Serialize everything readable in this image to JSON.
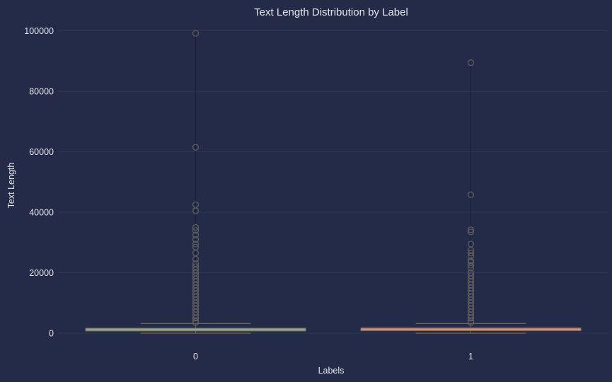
{
  "chart_data": {
    "type": "box",
    "title": "Text Length Distribution by Label",
    "xlabel": "Labels",
    "ylabel": "Text Length",
    "categories": [
      "0",
      "1"
    ],
    "ylim": [
      -3500,
      102500
    ],
    "yticks": [
      0,
      20000,
      40000,
      60000,
      80000,
      100000
    ],
    "grid": true,
    "legend": "none",
    "colors": {
      "background": "#232b48",
      "grid": "#3a4363",
      "text": "#e4e6ee",
      "outlier": "#5e5e5e",
      "whisker": "#1a1f35"
    },
    "boxes": [
      {
        "label": "0",
        "color": "#7f9a8b",
        "q1": 700,
        "median": 1200,
        "q3": 1700,
        "whisker_low": 0,
        "whisker_high": 3200,
        "outliers": [
          99200,
          61500,
          42500,
          40500,
          35000,
          34000,
          32500,
          31000,
          29500,
          28500,
          26500,
          24500,
          23000,
          22000,
          21000,
          20000,
          19000,
          18000,
          17000,
          16000,
          15000,
          14000,
          13000,
          12000,
          11000,
          10000,
          9000,
          8000,
          7000,
          6000,
          5000,
          4000,
          3500
        ]
      },
      {
        "label": "1",
        "color": "#c47a6d",
        "q1": 800,
        "median": 1300,
        "q3": 1800,
        "whisker_low": 0,
        "whisker_high": 3200,
        "outliers": [
          89500,
          45800,
          34200,
          33500,
          29500,
          27500,
          26500,
          25500,
          24000,
          23500,
          22500,
          21500,
          20000,
          19000,
          18000,
          17000,
          16000,
          15000,
          14000,
          13000,
          12000,
          11000,
          10000,
          9000,
          8000,
          7000,
          6000,
          5000,
          4000,
          3500
        ]
      }
    ]
  }
}
